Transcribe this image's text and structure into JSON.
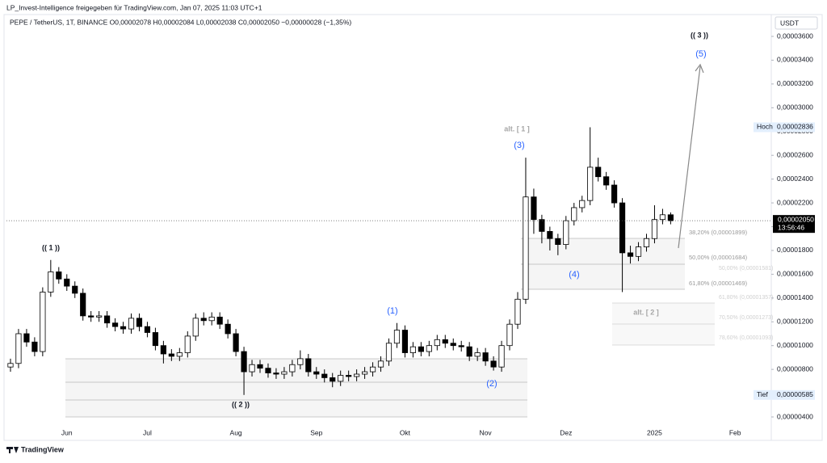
{
  "header": {
    "caption": "LP_Invest-Intelligence freigegeben für TradingView.com, Jan 07, 2025 11:03 UTC+1",
    "symbol_line": "PEPE / TetherUS, 1T, BINANCE  O0,00002078  H0,00002084  L0,00002038  C0,00002050  −0,00000028 (−1,35%)",
    "currency": "USDT",
    "footer": "TradingView"
  },
  "chart_data": {
    "type": "candlestick",
    "up_color": "#ffffff",
    "down_color": "#000000",
    "edge_color": "#000000",
    "categories": [
      null,
      null,
      null,
      null,
      null,
      null,
      null,
      "Jun",
      null,
      null,
      null,
      null,
      null,
      null,
      null,
      null,
      null,
      "Jul",
      null,
      null,
      null,
      null,
      null,
      null,
      null,
      null,
      null,
      null,
      "Aug",
      null,
      null,
      null,
      null,
      null,
      null,
      null,
      null,
      null,
      "Sep",
      null,
      null,
      null,
      null,
      null,
      null,
      null,
      null,
      null,
      null,
      "Okt",
      null,
      null,
      null,
      null,
      null,
      null,
      null,
      null,
      null,
      "Nov",
      null,
      null,
      null,
      null,
      null,
      null,
      null,
      null,
      null,
      "Dez",
      null,
      null,
      null,
      null,
      null,
      null,
      null,
      null,
      null,
      null,
      "2025",
      null,
      null,
      null,
      null,
      null,
      null,
      null,
      null,
      null,
      "Feb",
      null,
      null,
      null,
      null
    ],
    "open": [
      8.2e-06,
      8.5e-06,
      1.1e-05,
      1.03e-05,
      9.5e-06,
      1.45e-05,
      1.62e-05,
      1.56e-05,
      1.5e-05,
      1.44e-05,
      1.25e-05,
      1.24e-05,
      1.25e-05,
      1.19e-05,
      1.16e-05,
      1.14e-05,
      1.23e-05,
      1.16e-05,
      1.11e-05,
      1e-05,
      9.3e-06,
      9.1e-06,
      9.4e-06,
      1.08e-05,
      1.23e-05,
      1.21e-05,
      1.24e-05,
      1.18e-05,
      1.1e-05,
      9.5e-06,
      7.8e-06,
      8.4e-06,
      8.1e-06,
      7.7e-06,
      7.6e-06,
      7.8e-06,
      8.4e-06,
      8.9e-06,
      7.8e-06,
      7.6e-06,
      7.3e-06,
      7e-06,
      7.5e-06,
      7.4e-06,
      7.6e-06,
      7.8e-06,
      8.2e-06,
      8.7e-06,
      1.02e-05,
      1.13e-05,
      9.4e-06,
      9.9e-06,
      9.5e-06,
      1e-05,
      1.05e-05,
      1.02e-05,
      1e-05,
      9.9e-06,
      9.1e-06,
      9.4e-06,
      8.7e-06,
      8.2e-06,
      1e-05,
      1.18e-05,
      1.39e-05,
      2.25e-05,
      2.06e-05,
      1.96e-05,
      1.9e-05,
      1.85e-05,
      2.05e-05,
      2.16e-05,
      2.22e-05,
      2.5e-05,
      2.42e-05,
      2.35e-05,
      2.2e-05,
      1.78e-05,
      1.75e-05,
      1.83e-05,
      1.9e-05,
      2.06e-05,
      2.1e-05,
      null,
      null,
      null,
      null,
      null,
      null,
      null,
      null,
      null,
      null,
      null,
      null
    ],
    "high": [
      8.9e-06,
      1.14e-05,
      1.14e-05,
      1.07e-05,
      1.49e-05,
      1.72e-05,
      1.66e-05,
      1.6e-05,
      1.54e-05,
      1.48e-05,
      1.29e-05,
      1.29e-05,
      1.29e-05,
      1.23e-05,
      1.2e-05,
      1.27e-05,
      1.27e-05,
      1.2e-05,
      1.15e-05,
      1.04e-05,
      9.7e-06,
      9.8e-06,
      1.12e-05,
      1.27e-05,
      1.28e-05,
      1.28e-05,
      1.28e-05,
      1.22e-05,
      1.14e-05,
      9.9e-06,
      8.8e-06,
      8.8e-06,
      8.5e-06,
      8.1e-06,
      8.2e-06,
      8.8e-06,
      9.6e-06,
      9.3e-06,
      8.2e-06,
      8e-06,
      7.7e-06,
      7.9e-06,
      7.9e-06,
      8e-06,
      8.2e-06,
      8.6e-06,
      9.1e-06,
      1.06e-05,
      1.19e-05,
      1.17e-05,
      1.03e-05,
      1.03e-05,
      1.04e-05,
      1.09e-05,
      1.09e-05,
      1.06e-05,
      1.04e-05,
      1.03e-05,
      9.8e-06,
      9.8e-06,
      9.1e-06,
      1.04e-05,
      1.22e-05,
      1.45e-05,
      2.58e-05,
      2.32e-05,
      2.1e-05,
      2e-05,
      1.94e-05,
      2.09e-05,
      2.2e-05,
      2.26e-05,
      2.836e-05,
      2.58e-05,
      2.46e-05,
      2.39e-05,
      2.24e-05,
      1.84e-05,
      1.87e-05,
      1.94e-05,
      2.18e-05,
      2.15e-05,
      2.12e-05,
      null,
      null,
      null,
      null,
      null,
      null,
      null,
      null,
      null,
      null,
      null,
      null
    ],
    "low": [
      7.8e-06,
      8.1e-06,
      9.9e-06,
      9.1e-06,
      9.1e-06,
      1.41e-05,
      1.52e-05,
      1.46e-05,
      1.4e-05,
      1.21e-05,
      1.2e-05,
      1.2e-05,
      1.15e-05,
      1.12e-05,
      1.1e-05,
      1.1e-05,
      1.12e-05,
      1.07e-05,
      9.6e-06,
      8.5e-06,
      8.7e-06,
      8.7e-06,
      9e-06,
      1.04e-05,
      1.17e-05,
      1.17e-05,
      1.14e-05,
      1.06e-05,
      9.1e-06,
      5.85e-06,
      7.4e-06,
      7.7e-06,
      7.3e-06,
      7.2e-06,
      7.2e-06,
      7.4e-06,
      8e-06,
      7.4e-06,
      7.2e-06,
      6.9e-06,
      6.5e-06,
      6.6e-06,
      7e-06,
      7e-06,
      7.2e-06,
      7.4e-06,
      7.8e-06,
      8.3e-06,
      9.8e-06,
      9e-06,
      9e-06,
      9.1e-06,
      9.1e-06,
      9.6e-06,
      9.8e-06,
      9.6e-06,
      9.5e-06,
      8.7e-06,
      8.7e-06,
      8.3e-06,
      7.9e-06,
      7.8e-06,
      9.6e-06,
      1.14e-05,
      1.35e-05,
      1.94e-05,
      1.86e-05,
      1.8e-05,
      1.76e-05,
      1.81e-05,
      2.01e-05,
      2.12e-05,
      2.18e-05,
      2.38e-05,
      2.31e-05,
      2.16e-05,
      1.45e-05,
      1.69e-05,
      1.71e-05,
      1.79e-05,
      1.86e-05,
      2.02e-05,
      2.02e-05,
      null,
      null,
      null,
      null,
      null,
      null,
      null,
      null,
      null,
      null,
      null,
      null
    ],
    "close": [
      8.5e-06,
      1.1e-05,
      1.03e-05,
      9.5e-06,
      1.45e-05,
      1.62e-05,
      1.56e-05,
      1.5e-05,
      1.44e-05,
      1.25e-05,
      1.24e-05,
      1.25e-05,
      1.19e-05,
      1.16e-05,
      1.14e-05,
      1.23e-05,
      1.16e-05,
      1.11e-05,
      1e-05,
      9.3e-06,
      9.1e-06,
      9.4e-06,
      1.08e-05,
      1.23e-05,
      1.21e-05,
      1.24e-05,
      1.18e-05,
      1.1e-05,
      9.5e-06,
      7.8e-06,
      8.4e-06,
      8.1e-06,
      7.7e-06,
      7.6e-06,
      7.8e-06,
      8.4e-06,
      8.9e-06,
      7.8e-06,
      7.6e-06,
      7.3e-06,
      7e-06,
      7.5e-06,
      7.4e-06,
      7.6e-06,
      7.8e-06,
      8.2e-06,
      8.7e-06,
      1.02e-05,
      1.13e-05,
      9.4e-06,
      9.9e-06,
      9.5e-06,
      1e-05,
      1.05e-05,
      1.02e-05,
      1e-05,
      9.9e-06,
      9.1e-06,
      9.4e-06,
      8.7e-06,
      8.2e-06,
      1e-05,
      1.18e-05,
      1.39e-05,
      2.25e-05,
      2.06e-05,
      1.96e-05,
      1.9e-05,
      1.85e-05,
      2.05e-05,
      2.16e-05,
      2.22e-05,
      2.5e-05,
      2.42e-05,
      2.35e-05,
      2.2e-05,
      1.78e-05,
      1.75e-05,
      1.83e-05,
      1.9e-05,
      2.06e-05,
      2.1e-05,
      2.05e-05,
      null,
      null,
      null,
      null,
      null,
      null,
      null,
      null,
      null,
      null,
      null,
      null
    ],
    "ylim": [
      2.37e-06,
      3.838e-05
    ],
    "yticks": [
      {
        "value": 4e-06,
        "label": "0,00000400"
      },
      {
        "value": 6e-06,
        "label": "0,00000600"
      },
      {
        "value": 8e-06,
        "label": "0,00000800"
      },
      {
        "value": 1e-05,
        "label": "0,00001000"
      },
      {
        "value": 1.2e-05,
        "label": "0,00001200"
      },
      {
        "value": 1.4e-05,
        "label": "0,00001400"
      },
      {
        "value": 1.6e-05,
        "label": "0,00001600"
      },
      {
        "value": 1.8e-05,
        "label": "0,00001800"
      },
      {
        "value": 2e-05,
        "label": "0,00002000"
      },
      {
        "value": 2.2e-05,
        "label": "0,00002200"
      },
      {
        "value": 2.4e-05,
        "label": "0,00002400"
      },
      {
        "value": 2.6e-05,
        "label": "0,00002600"
      },
      {
        "value": 2.8e-05,
        "label": "0,00002800"
      },
      {
        "value": 3e-05,
        "label": "0,00003000"
      },
      {
        "value": 3.2e-05,
        "label": "0,00003200"
      },
      {
        "value": 3.4e-05,
        "label": "0,00003400"
      },
      {
        "value": 3.6e-05,
        "label": "0,00003600"
      }
    ],
    "last_price": {
      "value": 2.05e-05,
      "label": "0,00002050",
      "countdown": "13:56:46"
    },
    "high_marker": {
      "label": "Hoch",
      "value": 2.836e-05,
      "value_label": "0,00002836"
    },
    "low_marker": {
      "label": "Tief",
      "value": 5.85e-06,
      "value_label": "0,00000585"
    },
    "annotations": {
      "wave_1_major": "(( 1 ))",
      "wave_2_major": "(( 2 ))",
      "wave_3_major": "(( 3 ))",
      "wave_1": "(1)",
      "wave_2": "(2)",
      "wave_3": "(3)",
      "wave_4": "(4)",
      "wave_5": "(5)",
      "alt_1": "alt. [ 1 ]",
      "alt_2": "alt. [ 2 ]",
      "fib_382": "38,20% (0,00001899)",
      "fib_500": "50,00% (0,00001684)",
      "fib_618": "61,80% (0,00001469)",
      "fib_alt_500": "50,00% (0,00001581)",
      "fib_alt_618": "61,80% (0,00001357)",
      "fib_alt_705": "70,50% (0,00001273)",
      "fib_alt_786": "78,60% (0,00001093)"
    }
  }
}
